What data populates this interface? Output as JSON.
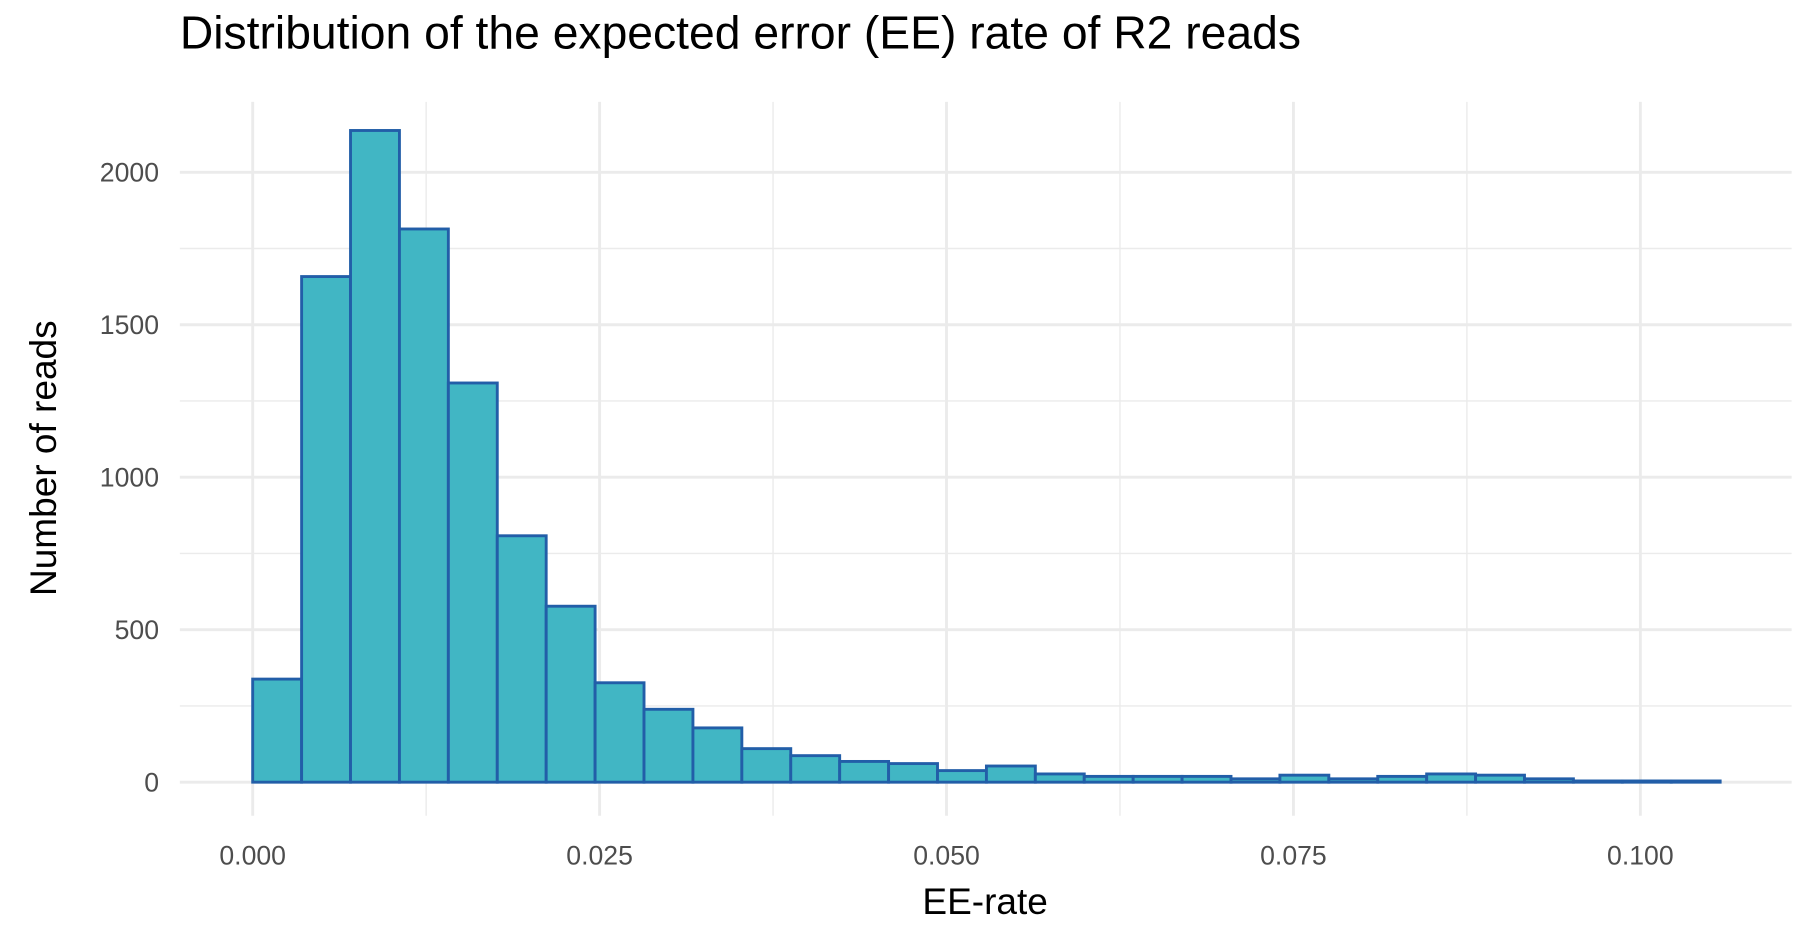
{
  "chart_data": {
    "type": "histogram",
    "title": "Distribution of the expected error (EE) rate of R2 reads",
    "x_label": "EE-rate",
    "y_label": "Number of reads",
    "bins": [
      0,
      0.003525,
      0.00705,
      0.010575,
      0.0141,
      0.017625,
      0.02115,
      0.024675,
      0.0282,
      0.031725,
      0.03525,
      0.038775,
      0.0423,
      0.045825,
      0.04935,
      0.052875,
      0.0564,
      0.059925,
      0.06345,
      0.066975,
      0.0705,
      0.074025,
      0.07755,
      0.081075,
      0.0846,
      0.088125,
      0.09165,
      0.095175,
      0.0987,
      0.102225,
      0.10575
    ],
    "values": [
      338,
      1658,
      2137,
      1814,
      1309,
      808,
      577,
      326,
      239,
      178,
      110,
      87,
      68,
      61,
      38,
      53,
      27,
      19,
      19,
      19,
      11,
      23,
      11,
      19,
      27,
      23,
      11,
      4,
      4,
      4
    ],
    "color": "#41b6c4",
    "edge_color": "#225ea8",
    "xlim": [
      -0.00525,
      0.1109
    ],
    "ylim": [
      -110,
      2231
    ],
    "xticks": [
      {
        "value": 0,
        "label": "0.000"
      },
      {
        "value": 0.025,
        "label": "0.025"
      },
      {
        "value": 0.05,
        "label": "0.050"
      },
      {
        "value": 0.075,
        "label": "0.075"
      },
      {
        "value": 0.1,
        "label": "0.100"
      }
    ],
    "yticks": [
      0,
      500,
      1000,
      1500,
      2000
    ],
    "grid": true
  }
}
